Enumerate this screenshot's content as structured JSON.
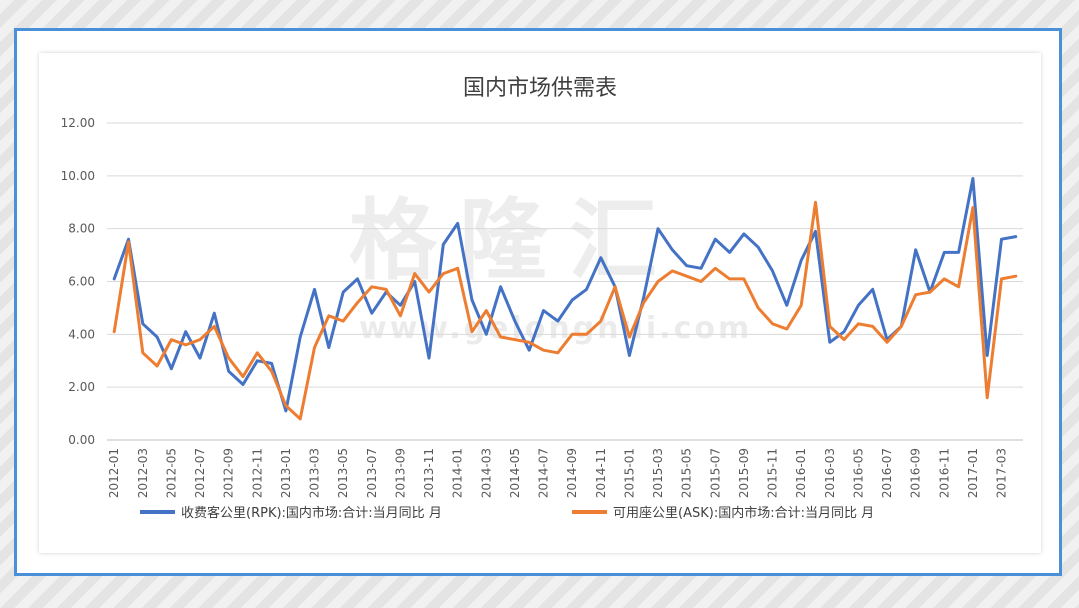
{
  "chart_data": {
    "type": "line",
    "title": "国内市场供需表",
    "watermark": "格隆汇",
    "watermark_url": "www.gelonghui.com",
    "colors": {
      "rpk": "#4472c4",
      "ask": "#ed7d31"
    },
    "ylim": [
      0,
      12
    ],
    "yticks": [
      "0.00",
      "2.00",
      "4.00",
      "6.00",
      "8.00",
      "10.00",
      "12.00"
    ],
    "grid": true,
    "legend_position": "bottom",
    "x": [
      "2012-01",
      "2012-02",
      "2012-03",
      "2012-04",
      "2012-05",
      "2012-06",
      "2012-07",
      "2012-08",
      "2012-09",
      "2012-10",
      "2012-11",
      "2012-12",
      "2013-01",
      "2013-02",
      "2013-03",
      "2013-04",
      "2013-05",
      "2013-06",
      "2013-07",
      "2013-08",
      "2013-09",
      "2013-10",
      "2013-11",
      "2013-12",
      "2014-01",
      "2014-02",
      "2014-03",
      "2014-04",
      "2014-05",
      "2014-06",
      "2014-07",
      "2014-08",
      "2014-09",
      "2014-10",
      "2014-11",
      "2014-12",
      "2015-01",
      "2015-02",
      "2015-03",
      "2015-04",
      "2015-05",
      "2015-06",
      "2015-07",
      "2015-08",
      "2015-09",
      "2015-10",
      "2015-11",
      "2015-12",
      "2016-01",
      "2016-02",
      "2016-03",
      "2016-04",
      "2016-05",
      "2016-06",
      "2016-07",
      "2016-08",
      "2016-09",
      "2016-10",
      "2016-11",
      "2016-12",
      "2017-01",
      "2017-02",
      "2017-03",
      "2017-04"
    ],
    "xticks": [
      "2012-01",
      "2012-03",
      "2012-05",
      "2012-07",
      "2012-09",
      "2012-11",
      "2013-01",
      "2013-03",
      "2013-05",
      "2013-07",
      "2013-09",
      "2013-11",
      "2014-01",
      "2014-03",
      "2014-05",
      "2014-07",
      "2014-09",
      "2014-11",
      "2015-01",
      "2015-03",
      "2015-05",
      "2015-07",
      "2015-09",
      "2015-11",
      "2016-01",
      "2016-03",
      "2016-05",
      "2016-07",
      "2016-09",
      "2016-11",
      "2017-01",
      "2017-03"
    ],
    "series": [
      {
        "name": "收费客公里(RPK):国内市场:合计:当月同比 月",
        "values": [
          6.1,
          7.6,
          4.4,
          3.9,
          2.7,
          4.1,
          3.1,
          4.8,
          2.6,
          2.1,
          3.0,
          2.9,
          1.1,
          3.9,
          5.7,
          3.5,
          5.6,
          6.1,
          4.8,
          5.6,
          5.1,
          6.0,
          3.1,
          7.4,
          8.2,
          5.3,
          4.0,
          5.8,
          4.5,
          3.4,
          4.9,
          4.5,
          5.3,
          5.7,
          6.9,
          5.8,
          3.2,
          5.4,
          8.0,
          7.2,
          6.6,
          6.5,
          7.6,
          7.1,
          7.8,
          7.3,
          6.4,
          5.1,
          6.8,
          7.9,
          3.7,
          4.1,
          5.1,
          5.7,
          3.8,
          4.3,
          7.2,
          5.6,
          7.1,
          7.1,
          9.9,
          3.2,
          7.6,
          7.7
        ]
      },
      {
        "name": "可用座公里(ASK):国内市场:合计:当月同比 月",
        "values": [
          4.1,
          7.5,
          3.3,
          2.8,
          3.8,
          3.6,
          3.8,
          4.3,
          3.1,
          2.4,
          3.3,
          2.6,
          1.3,
          0.8,
          3.5,
          4.7,
          4.5,
          5.2,
          5.8,
          5.7,
          4.7,
          6.3,
          5.6,
          6.3,
          6.5,
          4.1,
          4.9,
          3.9,
          3.8,
          3.7,
          3.4,
          3.3,
          4.0,
          4.0,
          4.5,
          5.8,
          3.9,
          5.2,
          6.0,
          6.4,
          6.2,
          6.0,
          6.5,
          6.1,
          6.1,
          5.0,
          4.4,
          4.2,
          5.1,
          9.0,
          4.3,
          3.8,
          4.4,
          4.3,
          3.7,
          4.3,
          5.5,
          5.6,
          6.1,
          5.8,
          8.8,
          1.6,
          6.1,
          6.2
        ]
      }
    ]
  }
}
